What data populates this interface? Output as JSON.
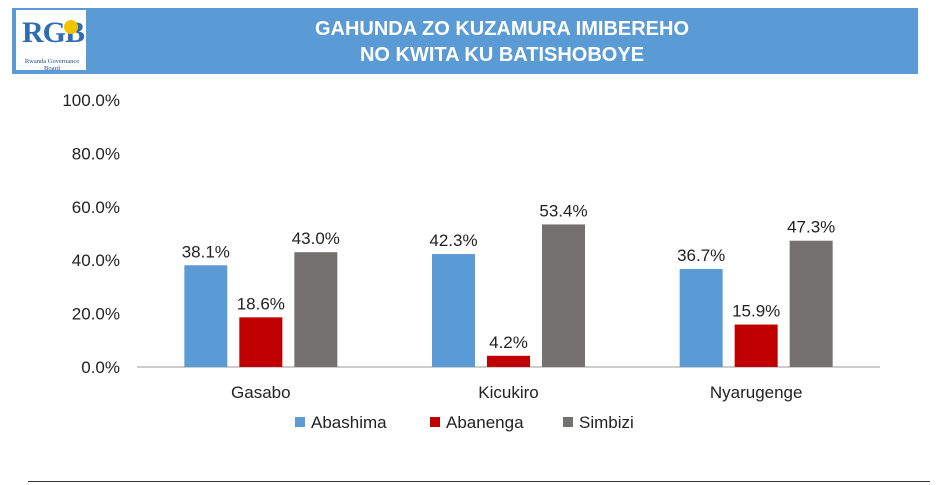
{
  "header": {
    "title_line1": "GAHUNDA ZO KUZAMURA IMIBEREHO",
    "title_line2": "NO KWITA KU BATISHOBOYE",
    "logo_text": "RGB",
    "logo_subtext": "Rwanda Governance Board"
  },
  "chart_data": {
    "type": "bar",
    "title": "GAHUNDA ZO KUZAMURA IMIBEREHO NO KWITA KU BATISHOBOYE",
    "categories": [
      "Gasabo",
      "Kicukiro",
      "Nyarugenge"
    ],
    "series": [
      {
        "name": "Abashima",
        "values": [
          38.1,
          42.3,
          36.7
        ],
        "color": "#5b9bd5"
      },
      {
        "name": "Abanenga",
        "values": [
          18.6,
          4.2,
          15.9
        ],
        "color": "#c00000"
      },
      {
        "name": "Simbizi",
        "values": [
          43.0,
          53.4,
          47.3
        ],
        "color": "#767171"
      }
    ],
    "ylim": [
      0,
      100
    ],
    "yticks": [
      "0.0%",
      "20.0%",
      "40.0%",
      "60.0%",
      "80.0%",
      "100.0%"
    ],
    "value_labels": [
      [
        "38.1%",
        "42.3%",
        "36.7%"
      ],
      [
        "18.6%",
        "4.2%",
        "15.9%"
      ],
      [
        "43.0%",
        "53.4%",
        "47.3%"
      ]
    ],
    "legend_position": "bottom",
    "grid": false
  }
}
